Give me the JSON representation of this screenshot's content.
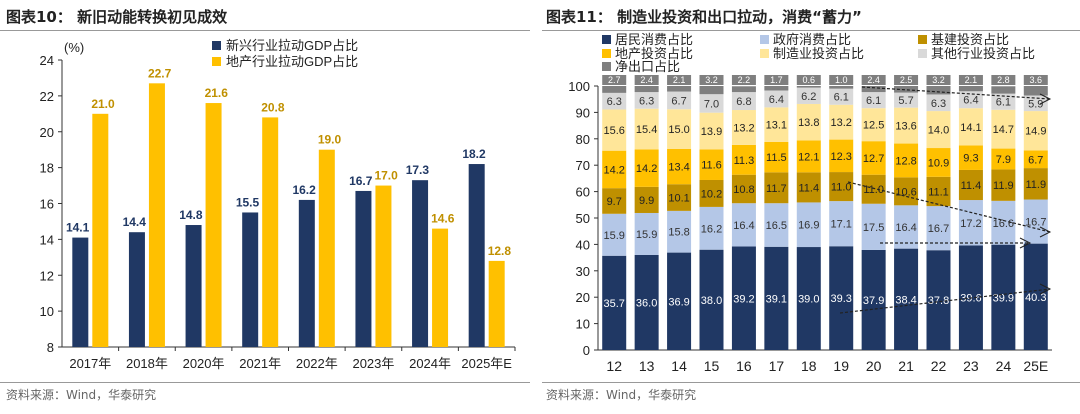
{
  "left": {
    "title": "图表10：  新旧动能转换初见成效",
    "source": "资料来源：Wind，华泰研究"
  },
  "right": {
    "title": "图表11：  制造业投资和出口拉动，消费“蓄力”",
    "source": "资料来源：Wind，华泰研究"
  },
  "colors": {
    "navy": "#203864",
    "gold": "#ffc000",
    "lightblue": "#b4c7e7",
    "darkgold": "#bf9000",
    "lightyellow": "#ffe699",
    "grey": "#d9d9d9",
    "darkgrey": "#7f7f7f"
  },
  "chart_data": [
    {
      "type": "bar",
      "title": "新旧动能转换初见成效",
      "ylabel": "(%)",
      "ylim": [
        8,
        24
      ],
      "yticks": [
        8,
        10,
        12,
        14,
        16,
        18,
        20,
        22,
        24
      ],
      "categories": [
        "2017年",
        "2018年",
        "2020年",
        "2021年",
        "2022年",
        "2023年",
        "2024年",
        "2025年E"
      ],
      "legend": "top-left",
      "series": [
        {
          "name": "新兴行业拉动GDP占比",
          "values": [
            14.1,
            14.4,
            14.8,
            15.5,
            16.2,
            16.7,
            17.3,
            18.2
          ]
        },
        {
          "name": "地产行业拉动GDP占比",
          "values": [
            21.0,
            22.7,
            21.6,
            20.8,
            19.0,
            17.0,
            14.6,
            12.8
          ]
        }
      ]
    },
    {
      "type": "bar",
      "stacked": true,
      "title": "制造业投资和出口拉动，消费“蓄力”",
      "ylim": [
        0,
        100
      ],
      "yticks": [
        0,
        10,
        20,
        30,
        40,
        50,
        60,
        70,
        80,
        90,
        100
      ],
      "categories": [
        "12",
        "13",
        "14",
        "15",
        "16",
        "17",
        "18",
        "19",
        "20",
        "21",
        "22",
        "23",
        "24",
        "25E"
      ],
      "legend": "top",
      "series": [
        {
          "name": "居民消费占比",
          "values": [
            35.7,
            36.0,
            36.9,
            38.0,
            39.2,
            39.1,
            39.0,
            39.3,
            37.9,
            38.4,
            37.8,
            39.6,
            39.9,
            40.3
          ]
        },
        {
          "name": "政府消费占比",
          "values": [
            15.9,
            15.9,
            15.8,
            16.2,
            16.4,
            16.5,
            16.9,
            17.1,
            17.5,
            16.4,
            16.7,
            17.2,
            16.6,
            16.7
          ]
        },
        {
          "name": "基建投资占比",
          "values": [
            9.7,
            9.9,
            10.1,
            10.2,
            10.8,
            11.7,
            11.4,
            11.0,
            11.0,
            10.6,
            11.1,
            11.4,
            11.9,
            11.9
          ]
        },
        {
          "name": "地产投资占比",
          "values": [
            14.2,
            14.2,
            13.4,
            11.6,
            11.3,
            11.5,
            12.1,
            12.3,
            12.7,
            12.8,
            10.9,
            9.3,
            7.9,
            6.7
          ]
        },
        {
          "name": "制造业投资占比",
          "values": [
            15.6,
            15.4,
            15.0,
            13.9,
            13.2,
            13.1,
            13.8,
            13.2,
            12.5,
            13.6,
            14.0,
            14.1,
            14.7,
            14.9
          ]
        },
        {
          "name": "其他行业投资占比",
          "values": [
            6.3,
            6.3,
            6.7,
            7.0,
            6.8,
            6.4,
            6.2,
            6.1,
            6.1,
            5.7,
            6.3,
            6.4,
            6.1,
            5.9
          ]
        },
        {
          "name": "净出口占比",
          "values": [
            2.7,
            2.4,
            2.1,
            3.2,
            2.2,
            1.7,
            0.6,
            1.0,
            2.4,
            2.5,
            3.2,
            2.1,
            2.8,
            3.6
          ]
        }
      ]
    }
  ]
}
